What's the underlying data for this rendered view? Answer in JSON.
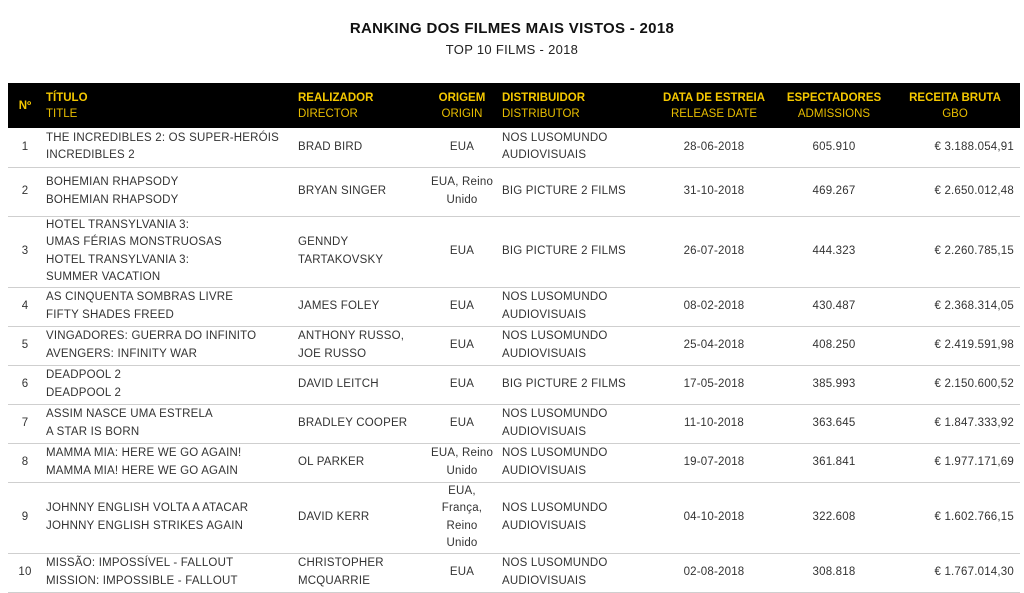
{
  "title": "RANKING DOS FILMES MAIS VISTOS - 2018",
  "subtitle": "TOP 10 FILMS - 2018",
  "header": {
    "rank": "Nº",
    "title_pt": "TÍTULO",
    "title_en": "TITLE",
    "director_pt": "REALIZADOR",
    "director_en": "DIRECTOR",
    "origin_pt": "ORIGEM",
    "origin_en": "ORIGIN",
    "distributor_pt": "DISTRIBUIDOR",
    "distributor_en": "DISTRIBUTOR",
    "release_pt": "DATA DE ESTREIA",
    "release_en": "RELEASE DATE",
    "admissions_pt": "ESPECTADORES",
    "admissions_en": "ADMISSIONS",
    "gbo_pt": "RECEITA BRUTA",
    "gbo_en": "GBO"
  },
  "rows": [
    {
      "rank": "1",
      "title_lines": [
        "THE INCREDIBLES 2: OS SUPER-HERÓIS",
        "INCREDIBLES 2"
      ],
      "director_lines": [
        "BRAD BIRD"
      ],
      "origin_lines": [
        "EUA"
      ],
      "distributor_lines": [
        "NOS LUSOMUNDO",
        "AUDIOVISUAIS"
      ],
      "release": "28-06-2018",
      "admissions": "605.910",
      "gbo": "€ 3.188.054,91"
    },
    {
      "rank": "2",
      "title_lines": [
        "BOHEMIAN RHAPSODY",
        "BOHEMIAN RHAPSODY"
      ],
      "director_lines": [
        "BRYAN SINGER"
      ],
      "origin_lines": [
        "EUA, Reino",
        "Unido"
      ],
      "distributor_lines": [
        "BIG PICTURE 2 FILMS"
      ],
      "release": "31-10-2018",
      "admissions": "469.267",
      "gbo": "€ 2.650.012,48"
    },
    {
      "rank": "3",
      "title_lines": [
        "HOTEL TRANSYLVANIA 3:",
        "UMAS FÉRIAS MONSTRUOSAS",
        "HOTEL TRANSYLVANIA 3:",
        "SUMMER VACATION"
      ],
      "director_lines": [
        "GENNDY",
        "TARTAKOVSKY"
      ],
      "origin_lines": [
        "EUA"
      ],
      "distributor_lines": [
        "BIG PICTURE 2 FILMS"
      ],
      "release": "26-07-2018",
      "admissions": "444.323",
      "gbo": "€ 2.260.785,15"
    },
    {
      "rank": "4",
      "title_lines": [
        "AS CINQUENTA SOMBRAS LIVRE",
        "FIFTY SHADES FREED"
      ],
      "director_lines": [
        "JAMES FOLEY"
      ],
      "origin_lines": [
        "EUA"
      ],
      "distributor_lines": [
        "NOS LUSOMUNDO",
        "AUDIOVISUAIS"
      ],
      "release": "08-02-2018",
      "admissions": "430.487",
      "gbo": "€ 2.368.314,05"
    },
    {
      "rank": "5",
      "title_lines": [
        "VINGADORES: GUERRA DO INFINITO",
        "AVENGERS: INFINITY WAR"
      ],
      "director_lines": [
        "ANTHONY RUSSO,",
        "JOE RUSSO"
      ],
      "origin_lines": [
        "EUA"
      ],
      "distributor_lines": [
        "NOS LUSOMUNDO",
        "AUDIOVISUAIS"
      ],
      "release": "25-04-2018",
      "admissions": "408.250",
      "gbo": "€ 2.419.591,98"
    },
    {
      "rank": "6",
      "title_lines": [
        "DEADPOOL 2",
        "DEADPOOL 2"
      ],
      "director_lines": [
        "DAVID LEITCH"
      ],
      "origin_lines": [
        "EUA"
      ],
      "distributor_lines": [
        "BIG PICTURE 2 FILMS"
      ],
      "release": "17-05-2018",
      "admissions": "385.993",
      "gbo": "€ 2.150.600,52"
    },
    {
      "rank": "7",
      "title_lines": [
        "ASSIM NASCE UMA ESTRELA",
        "A STAR IS BORN"
      ],
      "director_lines": [
        "BRADLEY COOPER"
      ],
      "origin_lines": [
        "EUA"
      ],
      "distributor_lines": [
        "NOS LUSOMUNDO",
        "AUDIOVISUAIS"
      ],
      "release": "11-10-2018",
      "admissions": "363.645",
      "gbo": "€ 1.847.333,92"
    },
    {
      "rank": "8",
      "title_lines": [
        "MAMMA MIA: HERE WE GO AGAIN!",
        "MAMMA MIA! HERE WE GO AGAIN"
      ],
      "director_lines": [
        "OL PARKER"
      ],
      "origin_lines": [
        "EUA, Reino",
        "Unido"
      ],
      "distributor_lines": [
        "NOS LUSOMUNDO",
        "AUDIOVISUAIS"
      ],
      "release": "19-07-2018",
      "admissions": "361.841",
      "gbo": "€ 1.977.171,69"
    },
    {
      "rank": "9",
      "title_lines": [
        "JOHNNY ENGLISH VOLTA A ATACAR",
        "JOHNNY ENGLISH STRIKES AGAIN"
      ],
      "director_lines": [
        "DAVID KERR"
      ],
      "origin_lines": [
        "EUA, França,",
        "Reino Unido"
      ],
      "distributor_lines": [
        "NOS LUSOMUNDO",
        "AUDIOVISUAIS"
      ],
      "release": "04-10-2018",
      "admissions": "322.608",
      "gbo": "€ 1.602.766,15"
    },
    {
      "rank": "10",
      "title_lines": [
        "MISSÃO: IMPOSSÍVEL - FALLOUT",
        "MISSION: IMPOSSIBLE - FALLOUT"
      ],
      "director_lines": [
        "CHRISTOPHER",
        "MCQUARRIE"
      ],
      "origin_lines": [
        "EUA"
      ],
      "distributor_lines": [
        "NOS LUSOMUNDO",
        "AUDIOVISUAIS"
      ],
      "release": "02-08-2018",
      "admissions": "308.818",
      "gbo": "€ 1.767.014,30"
    }
  ],
  "colors": {
    "header_bg": "#000000",
    "header_text": "#f5c800"
  }
}
